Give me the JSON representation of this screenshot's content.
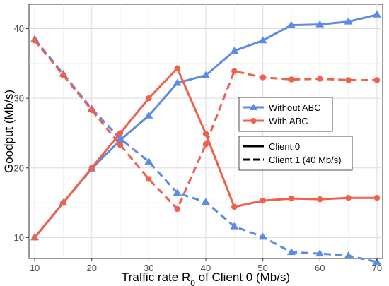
{
  "chart_data": {
    "type": "line",
    "title": "",
    "xlabel_parts": {
      "main": "Traffic rate R",
      "sub": "0",
      "rest": " of Client 0 (Mb/s)"
    },
    "ylabel": "Goodput (Mb/s)",
    "xlim": [
      9,
      71
    ],
    "ylim": [
      7.0,
      43.5
    ],
    "xticks": [
      10,
      20,
      30,
      40,
      50,
      60,
      70
    ],
    "yticks": [
      10,
      20,
      30,
      40
    ],
    "grid": true,
    "x": [
      10,
      15,
      20,
      25,
      30,
      35,
      40,
      45,
      50,
      55,
      60,
      65,
      70
    ],
    "series": [
      {
        "name": "Without ABC",
        "client": "Client 0",
        "color": "#5b8ce3",
        "marker": "triangle",
        "dash": "solid",
        "values": [
          10.0,
          15.0,
          19.9,
          24.0,
          27.5,
          32.2,
          33.3,
          36.8,
          38.3,
          40.5,
          40.6,
          41.0,
          42.0
        ]
      },
      {
        "name": "Without ABC",
        "client": "Client 1 (40 Mb/s)",
        "color": "#5b8ce3",
        "marker": "triangle",
        "dash": "dashed",
        "values": [
          38.5,
          33.5,
          28.5,
          24.2,
          20.9,
          16.4,
          15.1,
          11.6,
          10.1,
          7.9,
          7.7,
          7.4,
          6.5
        ]
      },
      {
        "name": "With ABC",
        "client": "Client 0",
        "color": "#f0604a",
        "marker": "circle",
        "dash": "solid",
        "values": [
          10.0,
          15.0,
          20.0,
          25.0,
          30.0,
          34.3,
          24.9,
          14.4,
          15.3,
          15.6,
          15.5,
          15.7,
          15.7
        ]
      },
      {
        "name": "With ABC",
        "client": "Client 1 (40 Mb/s)",
        "color": "#f0604a",
        "marker": "circle",
        "dash": "dashed",
        "values": [
          38.3,
          33.3,
          28.3,
          23.3,
          18.4,
          14.1,
          23.4,
          33.9,
          33.0,
          32.7,
          32.8,
          32.6,
          32.6
        ]
      }
    ],
    "legends": [
      {
        "position": "right-center",
        "entries": [
          {
            "label": "Without ABC",
            "color": "#5b8ce3",
            "marker": "triangle"
          },
          {
            "label": "With ABC",
            "color": "#f0604a",
            "marker": "circle"
          }
        ]
      },
      {
        "position": "right-lower",
        "entries": [
          {
            "label": "Client 0",
            "dash": "solid"
          },
          {
            "label": "Client 1 (40 Mb/s)",
            "dash": "dashed"
          }
        ]
      }
    ]
  }
}
